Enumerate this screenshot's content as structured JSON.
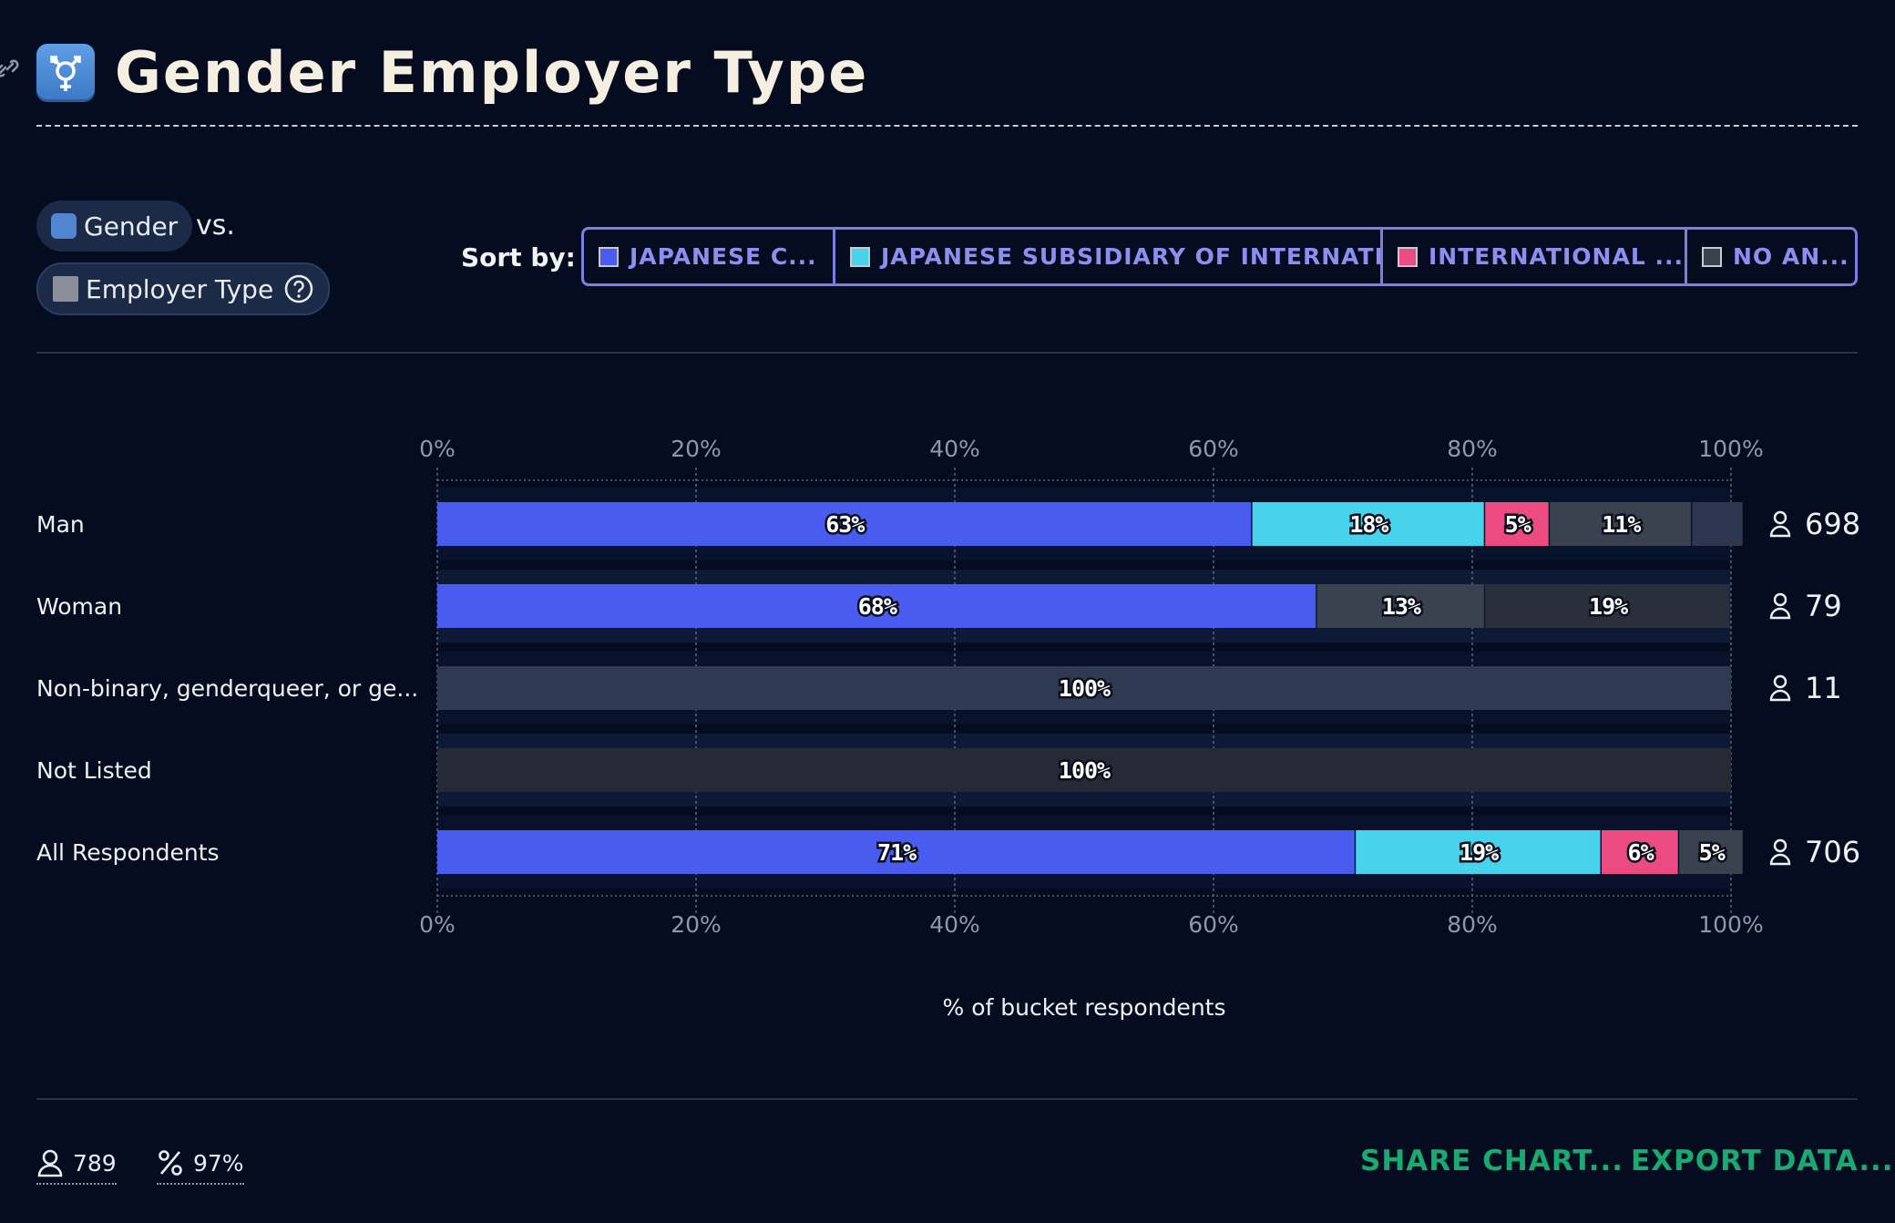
{
  "header": {
    "title": "Gender Employer Type"
  },
  "controls": {
    "primary_chip": "Gender",
    "vs_label": "vs.",
    "secondary_chip": "Employer Type",
    "sort_label": "Sort by:",
    "sort_options": [
      {
        "label": "JAPANESE C...",
        "color": "#4a5cf0"
      },
      {
        "label": "JAPANESE SUBSIDIARY OF INTERNATI...",
        "color": "#47d3ec"
      },
      {
        "label": "INTERNATIONAL ...",
        "color": "#ec4b82"
      },
      {
        "label": "NO AN...",
        "color": "#3a4250"
      }
    ]
  },
  "chart_data": {
    "type": "bar",
    "orientation": "horizontal",
    "stacked": true,
    "categories": [
      "Man",
      "Woman",
      "Non-binary, genderqueer, or ge...",
      "Not Listed",
      "All Respondents"
    ],
    "series": [
      {
        "name": "JAPANESE C...",
        "color": "#4a5cf0",
        "values": [
          63,
          68,
          0,
          0,
          71
        ]
      },
      {
        "name": "JAPANESE SUBSIDIARY OF INTERNATI...",
        "color": "#47d3ec",
        "values": [
          18,
          0,
          0,
          0,
          19
        ]
      },
      {
        "name": "INTERNATIONAL ...",
        "color": "#ec4b82",
        "values": [
          5,
          0,
          0,
          0,
          6
        ]
      },
      {
        "name": "",
        "color": "#3a4250",
        "values": [
          11,
          13,
          0,
          0,
          5
        ]
      },
      {
        "name": "NO AN...",
        "color": "#2d3850",
        "values": [
          4,
          0,
          0,
          0,
          0
        ]
      },
      {
        "name": "",
        "color": "#2a2f3c",
        "values": [
          0,
          19,
          100,
          100,
          0
        ]
      }
    ],
    "segment_labels": [
      [
        "63%",
        "18%",
        "5%",
        "11%",
        "",
        ""
      ],
      [
        "68%",
        "",
        "",
        "13%",
        "",
        "19%"
      ],
      [
        "",
        "",
        "",
        "",
        "",
        "100%"
      ],
      [
        "",
        "",
        "",
        "",
        "",
        "100%"
      ],
      [
        "71%",
        "19%",
        "6%",
        "5%",
        "",
        ""
      ]
    ],
    "row_fills": [
      "",
      "",
      "#2d3a52",
      "#262a34",
      ""
    ],
    "counts": [
      "698",
      "79",
      "11",
      "",
      "706"
    ],
    "x_ticks": [
      "0%",
      "20%",
      "40%",
      "60%",
      "80%",
      "100%"
    ],
    "xlim": [
      0,
      100
    ],
    "xlabel": "% of bucket respondents",
    "grid": true
  },
  "footer": {
    "respondents": "789",
    "percent": "97%",
    "share_label": "SHARE CHART...",
    "export_label": "EXPORT DATA..."
  }
}
